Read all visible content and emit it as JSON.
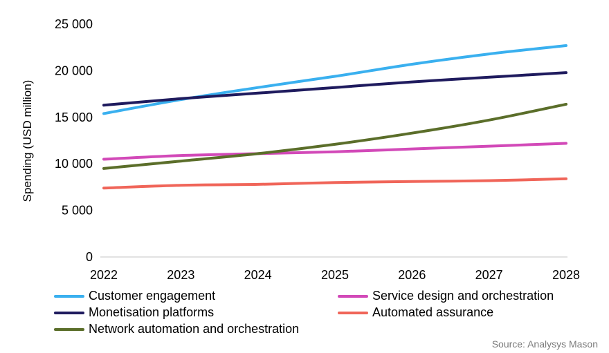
{
  "chart_data": {
    "type": "line",
    "x": [
      2022,
      2023,
      2024,
      2025,
      2026,
      2027,
      2028
    ],
    "ylabel": "Spending (USD million)",
    "ylim": [
      0,
      25000
    ],
    "yticks": [
      0,
      5000,
      10000,
      15000,
      20000,
      25000
    ],
    "ytick_labels": [
      "0",
      "5 000",
      "10 000",
      "15 000",
      "20 000",
      "25 000"
    ],
    "xtick_labels": [
      "2022",
      "2023",
      "2024",
      "2025",
      "2026",
      "2027",
      "2028"
    ],
    "grid": false,
    "legend_position": "bottom",
    "series": [
      {
        "name": "Customer engagement",
        "color": "#3ab0ef",
        "values": [
          15400,
          16900,
          18200,
          19400,
          20700,
          21800,
          22700
        ]
      },
      {
        "name": "Service design and orchestration",
        "color": "#d249b8",
        "values": [
          10500,
          10900,
          11100,
          11300,
          11600,
          11900,
          12200
        ]
      },
      {
        "name": "Monetisation platforms",
        "color": "#1f1b5e",
        "values": [
          16300,
          17000,
          17600,
          18200,
          18800,
          19300,
          19800
        ]
      },
      {
        "name": "Automated assurance",
        "color": "#f06559",
        "values": [
          7400,
          7700,
          7800,
          8000,
          8100,
          8200,
          8400
        ]
      },
      {
        "name": "Network automation and orchestration",
        "color": "#5b6e2a",
        "values": [
          9500,
          10300,
          11100,
          12100,
          13300,
          14700,
          16400
        ]
      }
    ]
  },
  "source": "Source: Analysys Mason"
}
